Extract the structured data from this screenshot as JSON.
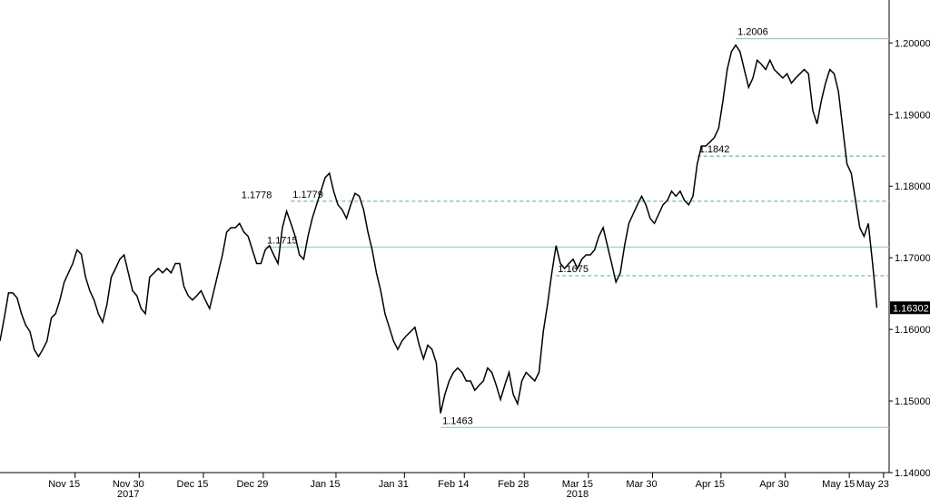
{
  "chart_data": {
    "type": "line",
    "categories": [
      null,
      null,
      null,
      null,
      null,
      null,
      null,
      null,
      null,
      null,
      null,
      null,
      null,
      null,
      null,
      "Nov 15",
      null,
      null,
      null,
      null,
      null,
      null,
      null,
      null,
      null,
      null,
      null,
      null,
      null,
      null,
      "Nov 30",
      null,
      null,
      null,
      null,
      null,
      null,
      null,
      null,
      null,
      null,
      null,
      null,
      null,
      null,
      "Dec 15",
      null,
      null,
      null,
      null,
      null,
      null,
      null,
      null,
      null,
      null,
      null,
      null,
      null,
      "Dec 29",
      null,
      null,
      null,
      null,
      null,
      null,
      null,
      null,
      null,
      null,
      null,
      null,
      null,
      null,
      null,
      null,
      "Jan 15",
      null,
      null,
      null,
      null,
      null,
      null,
      null,
      null,
      null,
      null,
      null,
      null,
      null,
      null,
      null,
      "Jan 31",
      null,
      null,
      null,
      null,
      null,
      null,
      null,
      null,
      null,
      null,
      null,
      null,
      null,
      "Feb 14",
      null,
      null,
      null,
      null,
      null,
      null,
      null,
      null,
      null,
      null,
      null,
      null,
      null,
      "Feb 28",
      null,
      null,
      null,
      null,
      null,
      null,
      null,
      null,
      null,
      null,
      null,
      null,
      null,
      null,
      "Mar 15",
      null,
      null,
      null,
      null,
      null,
      null,
      null,
      null,
      null,
      null,
      null,
      null,
      null,
      null,
      "Mar 30",
      null,
      null,
      null,
      null,
      null,
      null,
      null,
      null,
      null,
      null,
      null,
      null,
      null,
      null,
      null,
      "Apr 15",
      null,
      null,
      null,
      null,
      null,
      null,
      null,
      null,
      null,
      null,
      null,
      null,
      null,
      null,
      "Apr 30",
      null,
      null,
      null,
      null,
      null,
      null,
      null,
      null,
      null,
      null,
      null,
      null,
      null,
      null,
      "May 15",
      null,
      null,
      null,
      null,
      null,
      null,
      null,
      "May 23",
      null
    ],
    "year_labels": [
      {
        "label": "2017",
        "category": "Nov 30"
      },
      {
        "label": "2018",
        "category": "Mar 15"
      }
    ],
    "series": [
      {
        "color": "#000000",
        "values": [
          1.1584,
          1.1616,
          1.1651,
          1.1651,
          1.1644,
          1.1622,
          1.1606,
          1.1597,
          1.1572,
          1.1562,
          1.1572,
          1.1584,
          1.1616,
          1.1622,
          1.1641,
          1.1666,
          1.1679,
          1.1692,
          1.1711,
          1.1705,
          1.1673,
          1.1654,
          1.1641,
          1.1622,
          1.161,
          1.1635,
          1.1673,
          1.1685,
          1.1698,
          1.1704,
          1.1679,
          1.1654,
          1.1647,
          1.1629,
          1.1622,
          1.1673,
          1.1679,
          1.1685,
          1.1679,
          1.1685,
          1.1679,
          1.1692,
          1.1692,
          1.166,
          1.1647,
          1.1641,
          1.1647,
          1.1654,
          1.1641,
          1.1629,
          1.1654,
          1.1679,
          1.1704,
          1.1736,
          1.1742,
          1.1742,
          1.1748,
          1.1736,
          1.173,
          1.1711,
          1.1692,
          1.1692,
          1.1711,
          1.1717,
          1.1704,
          1.1692,
          1.1742,
          1.1765,
          1.1748,
          1.173,
          1.1704,
          1.1698,
          1.173,
          1.1755,
          1.1774,
          1.1793,
          1.1812,
          1.1818,
          1.1793,
          1.1774,
          1.1767,
          1.1755,
          1.1774,
          1.179,
          1.1786,
          1.1767,
          1.1736,
          1.1711,
          1.1679,
          1.1654,
          1.1622,
          1.1603,
          1.1584,
          1.1572,
          1.1584,
          1.1591,
          1.1597,
          1.1603,
          1.1578,
          1.1559,
          1.1578,
          1.1572,
          1.1553,
          1.1483,
          1.1509,
          1.1528,
          1.154,
          1.1546,
          1.154,
          1.1528,
          1.1528,
          1.1515,
          1.1522,
          1.1528,
          1.1546,
          1.154,
          1.1522,
          1.1502,
          1.1522,
          1.154,
          1.1509,
          1.1496,
          1.1528,
          1.154,
          1.1534,
          1.1528,
          1.154,
          1.1597,
          1.1635,
          1.1679,
          1.1717,
          1.1692,
          1.1685,
          1.1692,
          1.1698,
          1.1685,
          1.1698,
          1.1704,
          1.1704,
          1.1711,
          1.173,
          1.1742,
          1.1717,
          1.1692,
          1.1666,
          1.1679,
          1.1717,
          1.1748,
          1.1761,
          1.1774,
          1.1786,
          1.1774,
          1.1755,
          1.1748,
          1.1761,
          1.1774,
          1.178,
          1.1793,
          1.1786,
          1.1793,
          1.178,
          1.1774,
          1.1786,
          1.1831,
          1.1856,
          1.1856,
          1.1862,
          1.1868,
          1.1881,
          1.1919,
          1.1963,
          1.1988,
          1.1997,
          1.1988,
          1.1963,
          1.1938,
          1.1951,
          1.1976,
          1.197,
          1.1963,
          1.1976,
          1.1963,
          1.1957,
          1.1951,
          1.1957,
          1.1944,
          1.1951,
          1.1957,
          1.1963,
          1.1957,
          1.1906,
          1.1887,
          1.1919,
          1.1944,
          1.1963,
          1.1957,
          1.1932,
          1.1881,
          1.1831,
          1.1818,
          1.178,
          1.1742,
          1.173,
          1.1748,
          1.1692,
          1.16302
        ]
      }
    ],
    "levels": [
      {
        "value": 1.2006,
        "style": "solid",
        "from": 172
      },
      {
        "value": 1.1842,
        "style": "dashed",
        "from": 163
      },
      {
        "value": 1.1779,
        "style": "dashed",
        "from": 68
      },
      {
        "value": 1.1778,
        "style": "none",
        "from": 56
      },
      {
        "value": 1.1715,
        "style": "solid",
        "from": 62
      },
      {
        "value": 1.1675,
        "style": "dashed",
        "from": 130
      },
      {
        "value": 1.1463,
        "style": "solid",
        "from": 103
      }
    ],
    "level_colors": {
      "solid": "#9fd4a8",
      "dashed": "#6fb0a6"
    },
    "ylim": [
      1.14,
      1.206
    ],
    "yticks": [
      {
        "value": 1.14,
        "label": "1.14000"
      },
      {
        "value": 1.15,
        "label": "1.15000"
      },
      {
        "value": 1.16,
        "label": "1.16000"
      },
      {
        "value": 1.17,
        "label": "1.17000"
      },
      {
        "value": 1.18,
        "label": "1.18000"
      },
      {
        "value": 1.19,
        "label": "1.19000"
      },
      {
        "value": 1.2,
        "label": "1.20000"
      }
    ]
  }
}
